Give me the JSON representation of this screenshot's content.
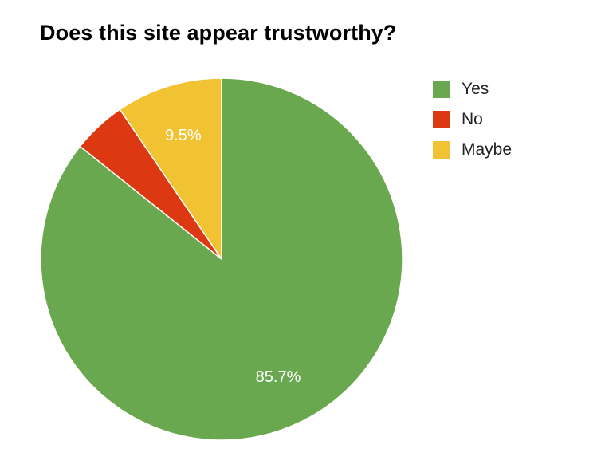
{
  "chart_data": {
    "type": "pie",
    "title": "Does this site appear trustworthy?",
    "slices": [
      {
        "name": "Yes",
        "value": 85.7,
        "label": "85.7%",
        "color": "#6aa84f"
      },
      {
        "name": "No",
        "value": 4.8,
        "label": "",
        "color": "#dc3912"
      },
      {
        "name": "Maybe",
        "value": 9.5,
        "label": "9.5%",
        "color": "#f1c232"
      }
    ],
    "legend_position": "right",
    "start_angle": "top, clockwise"
  }
}
